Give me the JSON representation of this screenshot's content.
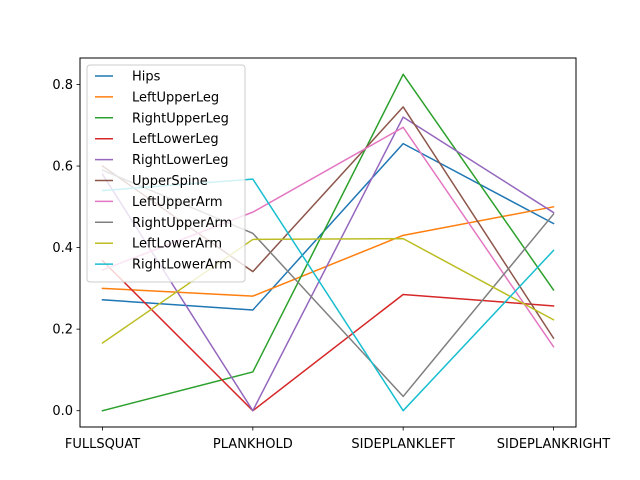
{
  "chart_data": {
    "type": "line",
    "title": "",
    "xlabel": "",
    "ylabel": "",
    "categories": [
      "FULLSQUAT",
      "PLANKHOLD",
      "SIDEPLANKLEFT",
      "SIDEPLANKRIGHT"
    ],
    "ylim": [
      -0.04,
      0.865
    ],
    "yticks": [
      0.0,
      0.2,
      0.4,
      0.6,
      0.8
    ],
    "ytick_labels": [
      "0.0",
      "0.2",
      "0.4",
      "0.6",
      "0.8"
    ],
    "grid": false,
    "legend_position": "upper-left",
    "series": [
      {
        "name": "Hips",
        "color": "#1f77b4",
        "values": [
          0.272,
          0.247,
          0.655,
          0.459
        ]
      },
      {
        "name": "LeftUpperLeg",
        "color": "#ff7f0e",
        "values": [
          0.3,
          0.281,
          0.43,
          0.5
        ]
      },
      {
        "name": "RightUpperLeg",
        "color": "#2ca02c",
        "values": [
          0.0,
          0.095,
          0.825,
          0.296
        ]
      },
      {
        "name": "LeftLowerLeg",
        "color": "#d62728",
        "values": [
          0.368,
          0.0,
          0.285,
          0.257
        ]
      },
      {
        "name": "RightLowerLeg",
        "color": "#9467bd",
        "values": [
          0.58,
          0.0,
          0.72,
          0.486
        ]
      },
      {
        "name": "UpperSpine",
        "color": "#8c564b",
        "values": [
          0.6,
          0.341,
          0.745,
          0.178
        ]
      },
      {
        "name": "LeftUpperArm",
        "color": "#e377c2",
        "values": [
          0.345,
          0.487,
          0.695,
          0.157
        ]
      },
      {
        "name": "RightUpperArm",
        "color": "#7f7f7f",
        "values": [
          0.59,
          0.435,
          0.035,
          0.482
        ]
      },
      {
        "name": "LeftLowerArm",
        "color": "#bcbd22",
        "values": [
          0.166,
          0.42,
          0.422,
          0.223
        ]
      },
      {
        "name": "RightLowerArm",
        "color": "#17becf",
        "values": [
          0.54,
          0.568,
          0.0,
          0.393
        ]
      }
    ]
  }
}
